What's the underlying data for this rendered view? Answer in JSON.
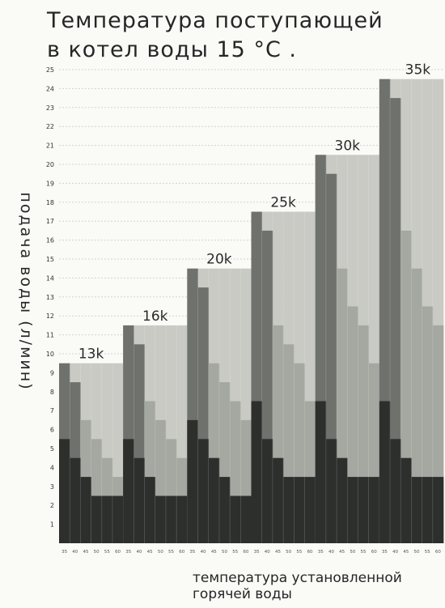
{
  "chart_data": {
    "type": "bar",
    "title_lines": [
      "Температура поступающей",
      "в котел воды 15 °С ."
    ],
    "ylabel": "подача воды (л/мин)",
    "xlabel": "температура установленной горячей воды",
    "ylim": [
      0,
      25
    ],
    "yticks": [
      1,
      2,
      3,
      4,
      5,
      6,
      7,
      8,
      9,
      10,
      11,
      12,
      13,
      14,
      15,
      16,
      17,
      18,
      19,
      20,
      21,
      22,
      23,
      24,
      25
    ],
    "x_ticks": [
      "35",
      "40",
      "45",
      "50",
      "55",
      "60"
    ],
    "grid": true,
    "colors": [
      "#2d2f2c",
      "#6f726c",
      "#a5a7a1",
      "#c9cac4"
    ],
    "groups": [
      {
        "label": "13k",
        "flow": [
          9.5,
          8.5,
          6.5,
          5.5,
          4.5,
          3.5
        ],
        "layer2": [
          5.5,
          4.5,
          3.5,
          2.5,
          2.5,
          2.5
        ]
      },
      {
        "label": "16k",
        "flow": [
          11.5,
          10.5,
          7.5,
          6.5,
          5.5,
          4.5
        ],
        "layer2": [
          5.5,
          4.5,
          3.5,
          2.5,
          2.5,
          2.5
        ]
      },
      {
        "label": "20k",
        "flow": [
          14.5,
          13.5,
          9.5,
          8.5,
          7.5,
          6.5
        ],
        "layer2": [
          6.5,
          5.5,
          4.5,
          3.5,
          2.5,
          2.5
        ]
      },
      {
        "label": "25k",
        "flow": [
          17.5,
          16.5,
          11.5,
          10.5,
          9.5,
          7.5
        ],
        "layer2": [
          7.5,
          5.5,
          4.5,
          3.5,
          3.5,
          3.5
        ]
      },
      {
        "label": "30k",
        "flow": [
          20.5,
          19.5,
          14.5,
          12.5,
          11.5,
          9.5
        ],
        "layer2": [
          7.5,
          5.5,
          4.5,
          3.5,
          3.5,
          3.5
        ]
      },
      {
        "label": "35k",
        "flow": [
          24.5,
          23.5,
          16.5,
          14.5,
          12.5,
          11.5
        ],
        "layer2": [
          7.5,
          5.5,
          4.5,
          3.5,
          3.5,
          3.5
        ]
      }
    ]
  }
}
